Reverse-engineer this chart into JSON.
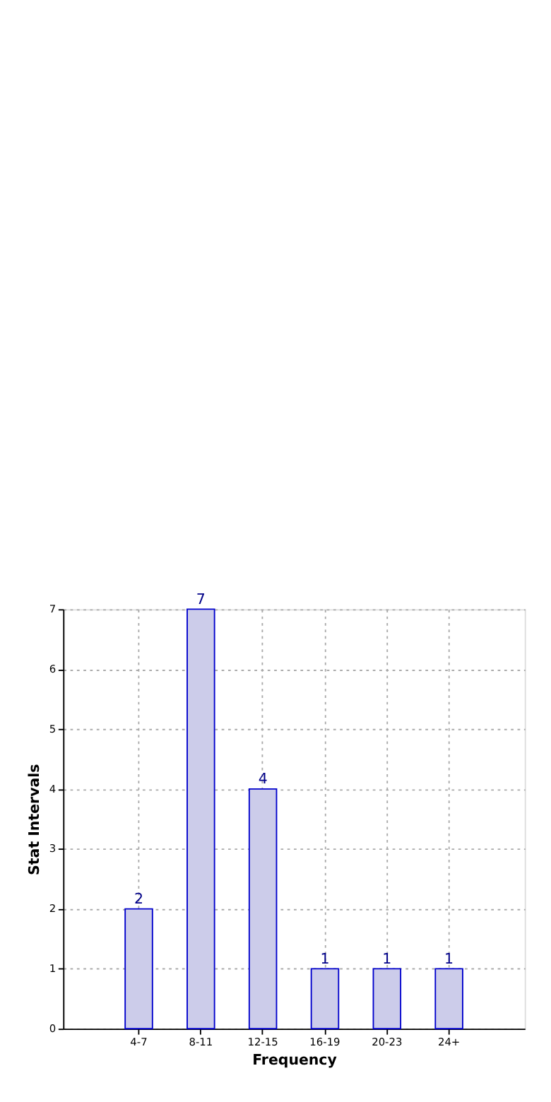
{
  "chart_data": {
    "type": "bar",
    "xlabel": "Frequency",
    "ylabel": "Stat Intervals",
    "categories": [
      "4-7",
      "8-11",
      "12-15",
      "16-19",
      "20-23",
      "24+"
    ],
    "values": [
      2,
      7,
      4,
      1,
      1,
      1
    ],
    "color": "#ccccea",
    "data_labels": true,
    "ylim": [
      0,
      7
    ],
    "yticks": [
      0,
      1,
      2,
      3,
      4,
      5,
      6,
      7
    ],
    "grid": true
  }
}
